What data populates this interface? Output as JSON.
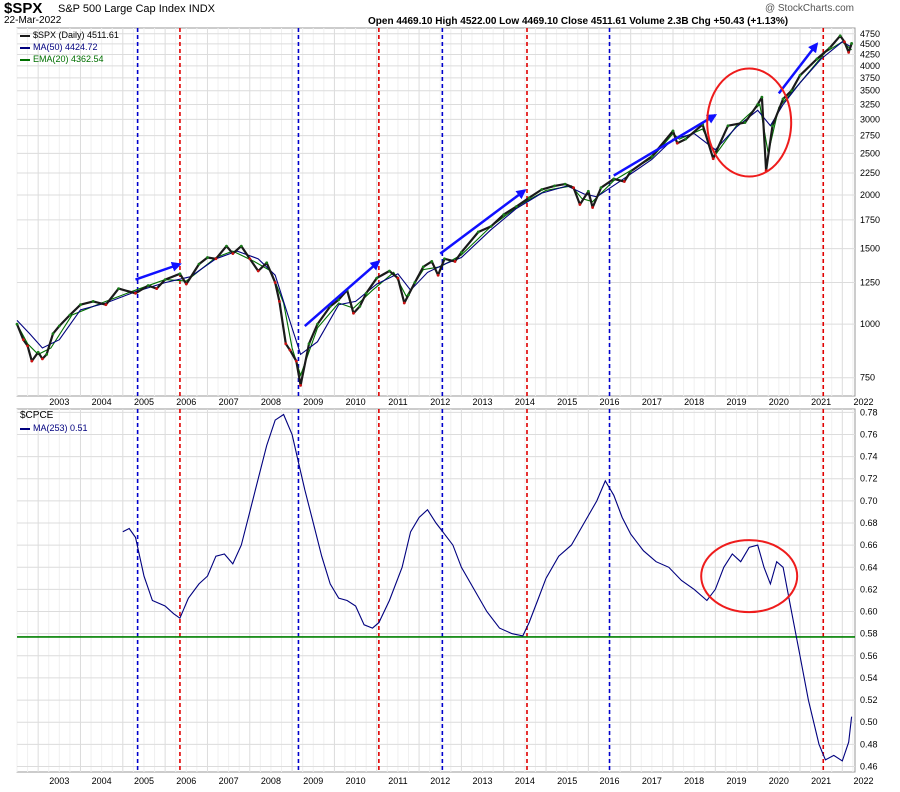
{
  "header": {
    "symbol": "$SPX",
    "name": "S&P 500 Large Cap Index",
    "exchange": "INDX",
    "date": "22-Mar-2022",
    "ohlc": "Open 4469.10  High 4522.00  Low 4469.10  Close 4511.61  Volume 2.3B  Chg +50.43 (+1.13%)",
    "watermark": "@ StockCharts.com",
    "legend": [
      "$SPX (Daily) 4511.61",
      "MA(50) 4424.72",
      "EMA(20) 4362.54"
    ]
  },
  "lower_header": {
    "symbol": "$CPCE",
    "legend": "MA(253) 0.51"
  },
  "colors": {
    "price": "#1a1a1a",
    "ma50": "#00007f",
    "ema20": "#007000",
    "cpce": "#00007f",
    "threshold": "#008000",
    "blue_vline": "#0000cc",
    "red_vline": "#e00000",
    "annotation_arrow": "#1010ff",
    "annotation_circle": "#ee1c1c"
  },
  "chart_data": [
    {
      "type": "line",
      "title": "$SPX S&P 500 Large Cap Index",
      "scale": "log",
      "ylim": [
        680,
        4900
      ],
      "yticks": [
        750,
        1000,
        1250,
        1500,
        1750,
        2000,
        2250,
        2500,
        2750,
        3000,
        3250,
        3500,
        3750,
        4000,
        4250,
        4500,
        4750
      ],
      "xlim": [
        2002.5,
        2022.3
      ],
      "x_tick_labels": [
        "2003",
        "2004",
        "2005",
        "2006",
        "2007",
        "2008",
        "2009",
        "2010",
        "2011",
        "2012",
        "2013",
        "2014",
        "2015",
        "2016",
        "2017",
        "2018",
        "2019",
        "2020",
        "2021",
        "2022"
      ],
      "grid": true,
      "series": [
        {
          "name": "$SPX (Daily)",
          "x": [
            2002.5,
            2002.65,
            2002.75,
            2002.85,
            2003.0,
            2003.1,
            2003.2,
            2003.35,
            2003.5,
            2003.75,
            2004.0,
            2004.3,
            2004.6,
            2004.9,
            2005.3,
            2005.6,
            2005.8,
            2006.0,
            2006.35,
            2006.5,
            2006.8,
            2007.0,
            2007.2,
            2007.45,
            2007.6,
            2007.8,
            2008.0,
            2008.2,
            2008.4,
            2008.6,
            2008.7,
            2008.85,
            2008.95,
            2009.1,
            2009.2,
            2009.4,
            2009.6,
            2009.9,
            2010.1,
            2010.3,
            2010.45,
            2010.6,
            2010.75,
            2011.0,
            2011.3,
            2011.5,
            2011.65,
            2011.75,
            2011.9,
            2012.1,
            2012.3,
            2012.45,
            2012.6,
            2012.85,
            2013.0,
            2013.4,
            2013.7,
            2014.0,
            2014.3,
            2014.6,
            2014.9,
            2015.2,
            2015.45,
            2015.65,
            2015.8,
            2016.0,
            2016.1,
            2016.3,
            2016.6,
            2016.85,
            2017.0,
            2017.5,
            2018.0,
            2018.1,
            2018.3,
            2018.7,
            2018.95,
            2019.0,
            2019.3,
            2019.7,
            2020.0,
            2020.1,
            2020.2,
            2020.35,
            2020.6,
            2020.8,
            2021.0,
            2021.4,
            2021.7,
            2021.95,
            2022.05,
            2022.15,
            2022.22
          ],
          "values": [
            1000,
            920,
            890,
            820,
            860,
            830,
            850,
            950,
            990,
            1050,
            1110,
            1130,
            1110,
            1210,
            1180,
            1230,
            1210,
            1270,
            1310,
            1240,
            1380,
            1430,
            1420,
            1520,
            1460,
            1520,
            1420,
            1330,
            1390,
            1250,
            1130,
            900,
            870,
            820,
            720,
            900,
            1000,
            1100,
            1140,
            1200,
            1060,
            1100,
            1180,
            1280,
            1330,
            1280,
            1120,
            1170,
            1250,
            1360,
            1400,
            1300,
            1420,
            1400,
            1470,
            1640,
            1690,
            1800,
            1880,
            1970,
            2060,
            2100,
            2120,
            2080,
            1900,
            2040,
            1870,
            2080,
            2180,
            2150,
            2270,
            2460,
            2820,
            2640,
            2700,
            2920,
            2430,
            2500,
            2900,
            2950,
            3250,
            3380,
            2280,
            2900,
            3350,
            3500,
            3800,
            4150,
            4400,
            4700,
            4550,
            4300,
            4510
          ]
        },
        {
          "name": "MA(50)",
          "x": [
            2002.5,
            2002.8,
            2003.1,
            2003.5,
            2004.0,
            2004.6,
            2005.3,
            2006.0,
            2006.6,
            2007.2,
            2007.7,
            2008.2,
            2008.6,
            2008.9,
            2009.2,
            2009.6,
            2010.1,
            2010.5,
            2011.0,
            2011.5,
            2011.8,
            2012.2,
            2012.6,
            2013.0,
            2013.7,
            2014.3,
            2014.9,
            2015.5,
            2015.9,
            2016.2,
            2016.8,
            2017.5,
            2018.0,
            2018.5,
            2019.0,
            2019.5,
            2020.0,
            2020.3,
            2020.6,
            2021.0,
            2021.5,
            2022.0,
            2022.22
          ],
          "values": [
            1020,
            950,
            880,
            920,
            1080,
            1120,
            1190,
            1250,
            1290,
            1420,
            1480,
            1420,
            1300,
            1050,
            850,
            910,
            1110,
            1130,
            1240,
            1310,
            1200,
            1320,
            1380,
            1430,
            1660,
            1860,
            2020,
            2100,
            2010,
            1980,
            2170,
            2420,
            2700,
            2780,
            2550,
            2880,
            3150,
            2900,
            3250,
            3650,
            4150,
            4550,
            4420
          ]
        },
        {
          "name": "EMA(20)",
          "x": [
            2002.5,
            2002.75,
            2003.0,
            2003.3,
            2003.8,
            2004.5,
            2005.2,
            2006.0,
            2006.5,
            2007.2,
            2007.6,
            2008.1,
            2008.5,
            2008.8,
            2009.0,
            2009.2,
            2009.6,
            2010.1,
            2010.45,
            2010.9,
            2011.4,
            2011.7,
            2012.1,
            2012.5,
            2013.0,
            2013.7,
            2014.4,
            2015.0,
            2015.6,
            2015.85,
            2016.1,
            2016.6,
            2017.5,
            2018.0,
            2018.15,
            2018.7,
            2019.0,
            2019.5,
            2020.05,
            2020.25,
            2020.5,
            2021.0,
            2021.6,
            2022.0,
            2022.22
          ],
          "values": [
            1000,
            900,
            850,
            880,
            1050,
            1120,
            1190,
            1270,
            1260,
            1430,
            1480,
            1400,
            1330,
            1120,
            880,
            760,
            980,
            1120,
            1090,
            1200,
            1320,
            1160,
            1340,
            1360,
            1450,
            1690,
            1900,
            2050,
            2100,
            1960,
            1930,
            2160,
            2440,
            2780,
            2700,
            2850,
            2480,
            2900,
            3250,
            2500,
            3200,
            3650,
            4300,
            4550,
            4360
          ]
        }
      ],
      "annotations": {
        "arrows": [
          {
            "from": [
              2005.3,
              1270
            ],
            "to": [
              2006.35,
              1380
            ]
          },
          {
            "from": [
              2009.3,
              990
            ],
            "to": [
              2011.05,
              1400
            ]
          },
          {
            "from": [
              2012.5,
              1460
            ],
            "to": [
              2014.5,
              2050
            ]
          },
          {
            "from": [
              2016.6,
              2220
            ],
            "to": [
              2019.0,
              3070
            ]
          },
          {
            "from": [
              2020.5,
              3450
            ],
            "to": [
              2021.4,
              4500
            ]
          }
        ],
        "circle": {
          "center": [
            2019.8,
            2950
          ],
          "label": "red circle"
        }
      }
    },
    {
      "type": "line",
      "title": "$CPCE",
      "ylim": [
        0.455,
        0.783
      ],
      "yticks": [
        0.46,
        0.48,
        0.5,
        0.52,
        0.54,
        0.56,
        0.58,
        0.6,
        0.62,
        0.64,
        0.66,
        0.68,
        0.7,
        0.72,
        0.74,
        0.76,
        0.78
      ],
      "xlim": [
        2002.5,
        2022.3
      ],
      "x_tick_labels": [
        "2003",
        "2004",
        "2005",
        "2006",
        "2007",
        "2008",
        "2009",
        "2010",
        "2011",
        "2012",
        "2013",
        "2014",
        "2015",
        "2016",
        "2017",
        "2018",
        "2019",
        "2020",
        "2021",
        "2022"
      ],
      "grid": true,
      "threshold": 0.577,
      "series": [
        {
          "name": "MA(253)",
          "x": [
            2005.0,
            2005.15,
            2005.3,
            2005.5,
            2005.7,
            2006.0,
            2006.2,
            2006.35,
            2006.55,
            2006.8,
            2007.0,
            2007.2,
            2007.4,
            2007.6,
            2007.8,
            2008.0,
            2008.2,
            2008.4,
            2008.6,
            2008.8,
            2009.0,
            2009.15,
            2009.3,
            2009.5,
            2009.7,
            2009.9,
            2010.1,
            2010.3,
            2010.5,
            2010.7,
            2010.9,
            2011.05,
            2011.3,
            2011.6,
            2011.8,
            2012.0,
            2012.2,
            2012.4,
            2012.6,
            2012.8,
            2013.0,
            2013.3,
            2013.6,
            2013.9,
            2014.2,
            2014.45,
            2014.6,
            2014.8,
            2015.0,
            2015.3,
            2015.6,
            2015.9,
            2016.2,
            2016.4,
            2016.6,
            2016.8,
            2017.0,
            2017.3,
            2017.6,
            2017.9,
            2018.2,
            2018.5,
            2018.8,
            2019.0,
            2019.2,
            2019.4,
            2019.6,
            2019.8,
            2020.0,
            2020.15,
            2020.3,
            2020.45,
            2020.6,
            2020.8,
            2021.0,
            2021.2,
            2021.45,
            2021.6,
            2021.8,
            2022.0,
            2022.15,
            2022.22
          ],
          "values": [
            0.672,
            0.675,
            0.667,
            0.632,
            0.61,
            0.605,
            0.598,
            0.594,
            0.612,
            0.625,
            0.632,
            0.65,
            0.652,
            0.643,
            0.66,
            0.69,
            0.72,
            0.75,
            0.773,
            0.778,
            0.76,
            0.735,
            0.71,
            0.68,
            0.65,
            0.625,
            0.612,
            0.61,
            0.605,
            0.588,
            0.585,
            0.59,
            0.61,
            0.64,
            0.672,
            0.685,
            0.692,
            0.68,
            0.67,
            0.66,
            0.64,
            0.62,
            0.6,
            0.585,
            0.58,
            0.578,
            0.59,
            0.61,
            0.63,
            0.65,
            0.66,
            0.68,
            0.7,
            0.718,
            0.705,
            0.685,
            0.67,
            0.655,
            0.645,
            0.64,
            0.628,
            0.62,
            0.61,
            0.62,
            0.64,
            0.652,
            0.645,
            0.658,
            0.66,
            0.64,
            0.625,
            0.645,
            0.64,
            0.6,
            0.56,
            0.52,
            0.48,
            0.466,
            0.47,
            0.465,
            0.482,
            0.505
          ]
        }
      ],
      "annotations": {
        "circle": {
          "center": [
            2019.8,
            0.632
          ],
          "label": "red circle"
        }
      }
    }
  ],
  "vlines": {
    "blue": [
      2005.35,
      2009.15,
      2012.55,
      2016.5
    ],
    "red": [
      2006.35,
      2011.05,
      2014.55,
      2021.55
    ]
  }
}
